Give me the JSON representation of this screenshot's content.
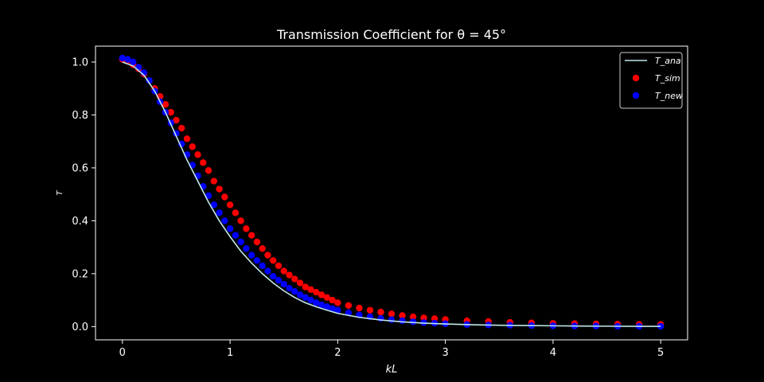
{
  "chart_data": {
    "type": "line",
    "title": "Transmission Coefficient for θ = 45°",
    "xlabel": "kL",
    "ylabel": "T",
    "xlim": [
      -0.25,
      5.25
    ],
    "ylim": [
      -0.05,
      1.06
    ],
    "xticks": [
      0,
      1,
      2,
      3,
      4,
      5
    ],
    "xtick_labels": [
      "0",
      "1",
      "2",
      "3",
      "4",
      "5"
    ],
    "yticks": [
      0.0,
      0.2,
      0.4,
      0.6,
      0.8,
      1.0
    ],
    "ytick_labels": [
      "0.0",
      "0.2",
      "0.4",
      "0.6",
      "0.8",
      "1.0"
    ],
    "grid": false,
    "legend_position": "top-right",
    "series": [
      {
        "name": "T_ana",
        "style": "line",
        "color": "#bfe8e8",
        "x": [
          0,
          0.1,
          0.2,
          0.3,
          0.4,
          0.5,
          0.6,
          0.7,
          0.8,
          0.9,
          1.0,
          1.1,
          1.2,
          1.3,
          1.4,
          1.5,
          1.6,
          1.7,
          1.8,
          1.9,
          2.0,
          2.2,
          2.4,
          2.6,
          2.8,
          3.0,
          3.25,
          3.5,
          3.75,
          4.0,
          4.25,
          4.5,
          4.75,
          5.0
        ],
        "y": [
          1.0,
          0.985,
          0.95,
          0.89,
          0.81,
          0.72,
          0.63,
          0.55,
          0.47,
          0.4,
          0.34,
          0.285,
          0.24,
          0.2,
          0.165,
          0.135,
          0.11,
          0.09,
          0.075,
          0.062,
          0.05,
          0.035,
          0.025,
          0.018,
          0.013,
          0.01,
          0.007,
          0.005,
          0.004,
          0.003,
          0.002,
          0.0015,
          0.001,
          0.001
        ]
      },
      {
        "name": "T_sim",
        "style": "scatter",
        "color": "#ff0000",
        "x": [
          0,
          0.05,
          0.1,
          0.15,
          0.2,
          0.25,
          0.3,
          0.35,
          0.4,
          0.45,
          0.5,
          0.55,
          0.6,
          0.65,
          0.7,
          0.75,
          0.8,
          0.85,
          0.9,
          0.95,
          1.0,
          1.05,
          1.1,
          1.15,
          1.2,
          1.25,
          1.3,
          1.35,
          1.4,
          1.45,
          1.5,
          1.55,
          1.6,
          1.65,
          1.7,
          1.75,
          1.8,
          1.85,
          1.9,
          1.95,
          2.0,
          2.1,
          2.2,
          2.3,
          2.4,
          2.5,
          2.6,
          2.7,
          2.8,
          2.9,
          3.0,
          3.2,
          3.4,
          3.6,
          3.8,
          4.0,
          4.2,
          4.4,
          4.6,
          4.8,
          5.0
        ],
        "y": [
          1.01,
          1.005,
          0.99,
          0.975,
          0.955,
          0.93,
          0.9,
          0.87,
          0.84,
          0.81,
          0.78,
          0.75,
          0.71,
          0.68,
          0.65,
          0.62,
          0.59,
          0.55,
          0.52,
          0.49,
          0.46,
          0.43,
          0.4,
          0.37,
          0.345,
          0.32,
          0.295,
          0.27,
          0.25,
          0.23,
          0.21,
          0.195,
          0.18,
          0.165,
          0.15,
          0.14,
          0.13,
          0.12,
          0.11,
          0.1,
          0.09,
          0.08,
          0.07,
          0.062,
          0.055,
          0.048,
          0.042,
          0.037,
          0.033,
          0.03,
          0.027,
          0.022,
          0.019,
          0.016,
          0.014,
          0.012,
          0.011,
          0.01,
          0.009,
          0.008,
          0.008
        ]
      },
      {
        "name": "T_new",
        "style": "scatter",
        "color": "#0000ff",
        "x": [
          0,
          0.05,
          0.1,
          0.15,
          0.2,
          0.25,
          0.3,
          0.35,
          0.4,
          0.45,
          0.5,
          0.55,
          0.6,
          0.65,
          0.7,
          0.75,
          0.8,
          0.85,
          0.9,
          0.95,
          1.0,
          1.05,
          1.1,
          1.15,
          1.2,
          1.25,
          1.3,
          1.35,
          1.4,
          1.45,
          1.5,
          1.55,
          1.6,
          1.65,
          1.7,
          1.75,
          1.8,
          1.85,
          1.9,
          1.95,
          2.0,
          2.1,
          2.2,
          2.3,
          2.4,
          2.5,
          2.6,
          2.7,
          2.8,
          2.9,
          3.0,
          3.2,
          3.4,
          3.6,
          3.8,
          4.0,
          4.2,
          4.4,
          4.6,
          4.8,
          5.0
        ],
        "y": [
          1.015,
          1.01,
          1.0,
          0.98,
          0.96,
          0.93,
          0.89,
          0.85,
          0.81,
          0.77,
          0.73,
          0.69,
          0.65,
          0.61,
          0.57,
          0.53,
          0.495,
          0.46,
          0.43,
          0.4,
          0.37,
          0.345,
          0.32,
          0.295,
          0.27,
          0.25,
          0.23,
          0.21,
          0.19,
          0.175,
          0.16,
          0.145,
          0.133,
          0.12,
          0.11,
          0.1,
          0.09,
          0.082,
          0.075,
          0.068,
          0.062,
          0.052,
          0.044,
          0.037,
          0.031,
          0.026,
          0.022,
          0.018,
          0.015,
          0.013,
          0.011,
          0.008,
          0.006,
          0.005,
          0.004,
          0.003,
          0.002,
          0.002,
          0.001,
          0.001,
          0.001
        ]
      }
    ]
  }
}
